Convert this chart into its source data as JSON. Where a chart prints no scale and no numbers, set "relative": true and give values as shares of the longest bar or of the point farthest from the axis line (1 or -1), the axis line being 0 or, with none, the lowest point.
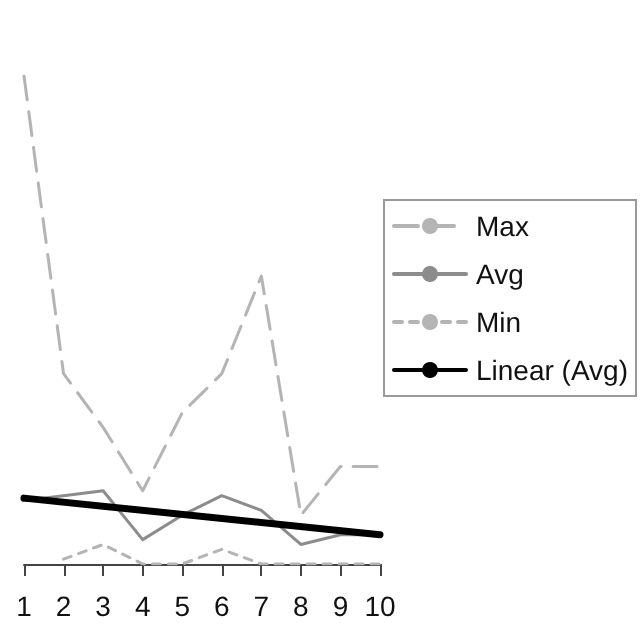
{
  "chart_data": {
    "type": "line",
    "relative": true,
    "categories": [
      "1",
      "2",
      "3",
      "4",
      "5",
      "6",
      "7",
      "8",
      "9",
      "10"
    ],
    "series": [
      {
        "name": "Max",
        "color": "#b4b4b4",
        "line_style": "dashed",
        "values": [
          1,
          0.39,
          0.28,
          0.15,
          0.31,
          0.39,
          0.59,
          0.1,
          0.2,
          0.2
        ]
      },
      {
        "name": "Avg",
        "color": "#8c8c8c",
        "line_style": "solid",
        "values": [
          0.13,
          0.14,
          0.15,
          0.05,
          0.1,
          0.14,
          0.11,
          0.04,
          0.06,
          0.06
        ]
      },
      {
        "name": "Min",
        "color": "#b4b4b4",
        "line_style": "dotted",
        "values": [
          null,
          0.01,
          0.04,
          0,
          0,
          0.03,
          0,
          0,
          0,
          0
        ]
      },
      {
        "name": "Linear (Avg)",
        "color": "#000000",
        "line_style": "solid",
        "x": [
          "1",
          "10"
        ],
        "values": [
          0.135,
          0.06
        ]
      }
    ],
    "legend": "right",
    "grid": false,
    "tick_labels": "x"
  }
}
